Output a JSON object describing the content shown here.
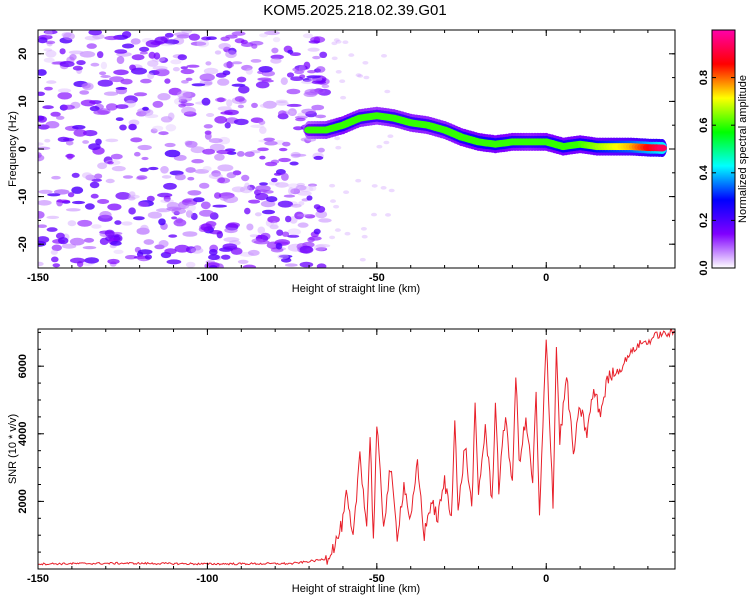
{
  "title": "KOM5.2025.218.02.39.G01",
  "chart_data": [
    {
      "type": "heatmap",
      "name": "spectrogram",
      "title": "KOM5.2025.218.02.39.G01",
      "xlabel": "Height of straight line (km)",
      "ylabel": "Frequency (Hz)",
      "xlim": [
        -150,
        38
      ],
      "ylim": [
        -25,
        25
      ],
      "xticks": [
        -150,
        -100,
        -50,
        0
      ],
      "xtick_labels": [
        "-150",
        "-100",
        "-50",
        "0"
      ],
      "yticks": [
        -20,
        -10,
        0,
        10,
        20
      ],
      "ytick_labels": [
        "-20",
        "-10",
        "0",
        "10",
        "20"
      ],
      "noise_region_x": [
        -150,
        -65
      ],
      "noise_region_y": [
        -25,
        25
      ],
      "signal_track": [
        {
          "x": -70,
          "y": 4,
          "amp": 0.35
        },
        {
          "x": -65,
          "y": 4,
          "amp": 0.45
        },
        {
          "x": -60,
          "y": 5,
          "amp": 0.55
        },
        {
          "x": -55,
          "y": 6.5,
          "amp": 0.5
        },
        {
          "x": -50,
          "y": 7,
          "amp": 0.45
        },
        {
          "x": -45,
          "y": 6.5,
          "amp": 0.5
        },
        {
          "x": -40,
          "y": 5.5,
          "amp": 0.5
        },
        {
          "x": -35,
          "y": 5,
          "amp": 0.5
        },
        {
          "x": -30,
          "y": 4,
          "amp": 0.5
        },
        {
          "x": -25,
          "y": 2.5,
          "amp": 0.55
        },
        {
          "x": -20,
          "y": 1.5,
          "amp": 0.6
        },
        {
          "x": -15,
          "y": 1,
          "amp": 0.6
        },
        {
          "x": -10,
          "y": 1.5,
          "amp": 0.55
        },
        {
          "x": -5,
          "y": 1.5,
          "amp": 0.5
        },
        {
          "x": 0,
          "y": 1.5,
          "amp": 0.55
        },
        {
          "x": 5,
          "y": 0.5,
          "amp": 0.6
        },
        {
          "x": 10,
          "y": 1,
          "amp": 0.6
        },
        {
          "x": 15,
          "y": 0.5,
          "amp": 0.65
        },
        {
          "x": 20,
          "y": 0.5,
          "amp": 0.7
        },
        {
          "x": 25,
          "y": 0.5,
          "amp": 0.75
        },
        {
          "x": 30,
          "y": 0.3,
          "amp": 0.85
        },
        {
          "x": 35,
          "y": 0.2,
          "amp": 0.95
        }
      ],
      "colorbar": {
        "label": "Normalized spectral amplitude",
        "range": [
          0,
          1
        ],
        "ticks": [
          0.0,
          0.2,
          0.4,
          0.6,
          0.8
        ],
        "tick_labels": [
          "0.0",
          "0.2",
          "0.4",
          "0.6",
          "0.8"
        ],
        "colors": [
          "#ffffff",
          "#8000ff",
          "#0000ff",
          "#00ffff",
          "#00ff00",
          "#ffff00",
          "#ff0000",
          "#ff00aa"
        ]
      }
    },
    {
      "type": "line",
      "name": "snr",
      "xlabel": "Height of straight line (km)",
      "ylabel": "SNR (10 * v/v)",
      "xlim": [
        -150,
        38
      ],
      "ylim": [
        0,
        7100
      ],
      "xticks": [
        -150,
        -100,
        -50,
        0
      ],
      "xtick_labels": [
        "-150",
        "-100",
        "-50",
        "0"
      ],
      "yticks": [
        2000,
        4000,
        6000
      ],
      "ytick_labels": [
        "2000",
        "4000",
        "6000"
      ],
      "color": "#e8202a",
      "series": [
        {
          "name": "SNR",
          "x": [
            -150,
            -125,
            -100,
            -75,
            -68,
            -65,
            -62,
            -60,
            -59,
            -57,
            -55,
            -53,
            -52,
            -51,
            -50,
            -48,
            -46,
            -44,
            -42,
            -40,
            -38,
            -36,
            -34,
            -32,
            -30,
            -28,
            -27,
            -26,
            -24,
            -22,
            -21,
            -20,
            -18,
            -16,
            -15,
            -14,
            -12,
            -10,
            -9,
            -8,
            -6,
            -4,
            -3,
            -2,
            0,
            2,
            3,
            4,
            6,
            8,
            10,
            12,
            14,
            16,
            18,
            20,
            22,
            24,
            26,
            28,
            30,
            32,
            34,
            36,
            38
          ],
          "y": [
            150,
            170,
            150,
            160,
            250,
            300,
            800,
            1400,
            2200,
            800,
            3500,
            1200,
            4000,
            900,
            4200,
            1300,
            3000,
            1000,
            2500,
            1400,
            3100,
            1000,
            2000,
            1500,
            2600,
            1500,
            4600,
            1600,
            3700,
            1800,
            4700,
            2200,
            4200,
            2000,
            5000,
            2400,
            4600,
            2400,
            5800,
            3200,
            4400,
            2600,
            5200,
            1500,
            6800,
            2000,
            6600,
            3800,
            5700,
            3400,
            4800,
            4000,
            5300,
            4600,
            5600,
            5800,
            5900,
            6300,
            6500,
            6700,
            6700,
            6900,
            6950,
            6950,
            7000
          ]
        }
      ]
    }
  ]
}
